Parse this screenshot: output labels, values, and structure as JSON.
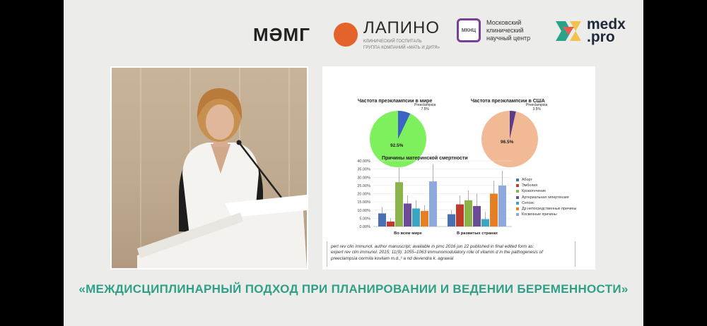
{
  "logos": {
    "mmg": "МӘМГ",
    "lapino_name": "ЛАПИНО",
    "lapino_sub": [
      "КЛИНИЧЕСКИЙ ГОСПИТАЛЬ",
      "ГРУППА КОМПАНИЙ «МАТЬ И ДИТЯ»"
    ],
    "mknc_badge": "МКНЦ",
    "mknc_text": [
      "Московский",
      "клинический",
      "научный центр"
    ],
    "medx": [
      "medx",
      ".pro"
    ]
  },
  "slide": {
    "pie_world": {
      "title": "Частота преэклампсии в мире",
      "slice_label": "Preeclampsia",
      "slice_value": "7.5%",
      "main_value": "92.5%"
    },
    "pie_usa": {
      "title": "Частота преэклампсии в США",
      "slice_label": "Preeclampsia",
      "slice_value": "3.5%",
      "main_value": "96.5%"
    },
    "bar_title": "Причины материнской смертности",
    "citation": [
      "pert rev clin immunol. author manuscript; available in pmc 2016 jun 22 published in final edited form as:",
      "expert rev clin immunol. 2015; 11(9): 1055–1063 immunomodulatory role of vitamin d in the pathogenesis of",
      "preeclampsia oormila kovilam m.d.,¹ a  nd devendra k. agrawal"
    ]
  },
  "banner": "«МЕЖДИСЦИПЛИНАРНЫЙ ПОДХОД ПРИ ПЛАНИРОВАНИИ И ВЕДЕНИИ БЕРЕМЕННОСТИ»",
  "colors": {
    "accent": "#2f9f86",
    "pie_world_main": "#7ef05e",
    "pie_usa_main": "#f2b995",
    "pie_world_slice": "#3b63c4",
    "pie_usa_slice": "#5a3c8a"
  },
  "chart_data": [
    {
      "type": "pie",
      "title": "Частота преэклампсии в мире",
      "slices": [
        {
          "name": "Preeclampsia",
          "value": 7.5
        },
        {
          "name": "",
          "value": 92.5
        }
      ]
    },
    {
      "type": "pie",
      "title": "Частота преэклампсии в США",
      "slices": [
        {
          "name": "Preeclampsia",
          "value": 3.5
        },
        {
          "name": "",
          "value": 96.5
        }
      ]
    },
    {
      "type": "bar",
      "title": "Причины материнской смертности",
      "categories": [
        "Во всем мире",
        "В развитых странах"
      ],
      "y_ticks": [
        "0.00%",
        "5.00%",
        "10.00%",
        "15.00%",
        "20.00%",
        "25.00%",
        "30.00%",
        "35.00%",
        "40.00%"
      ],
      "ylim": [
        0,
        40
      ],
      "legend_position": "right",
      "series": [
        {
          "name": "Аборт",
          "color": "#4a6fb3",
          "values": [
            8,
            7.5
          ]
        },
        {
          "name": "Эмболия",
          "color": "#c0392b",
          "values": [
            3,
            13.5
          ]
        },
        {
          "name": "Кровотечение",
          "color": "#8ab34a",
          "values": [
            27,
            16
          ]
        },
        {
          "name": "Артериальная гипертензия",
          "color": "#6b4a96",
          "values": [
            14,
            12.5
          ]
        },
        {
          "name": "Сепсис",
          "color": "#3aa6c4",
          "values": [
            11,
            4.5
          ]
        },
        {
          "name": "Др.непосредственные причины",
          "color": "#e67e22",
          "values": [
            9.5,
            20
          ]
        },
        {
          "name": "Косвенные причины",
          "color": "#8ea9de",
          "values": [
            27.5,
            25
          ]
        }
      ],
      "error_high": [
        [
          12,
          5,
          36,
          19,
          16,
          13,
          38
        ],
        [
          10,
          19,
          22,
          20,
          9,
          28,
          34
        ]
      ]
    }
  ]
}
